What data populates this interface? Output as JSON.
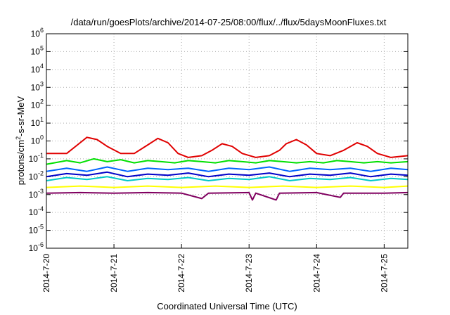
{
  "chart_data": {
    "type": "line",
    "title": "/data/run/goesPlots/archive/2014-07-25/08:00/flux/../flux/5daysMoonFluxes.txt",
    "xlabel": "Coordinated Universal Time (UTC)",
    "ylabel": {
      "prefix": "protons/cm",
      "exp": "2",
      "suffix": "-s-sr-MeV"
    },
    "yscale": "log",
    "ylim": [
      1e-06,
      1000000.0
    ],
    "xlim_days": [
      0,
      5.35
    ],
    "x_ticks": [
      "2014-7-20",
      "2014-7-21",
      "2014-7-22",
      "2014-7-23",
      "2014-7-24",
      "2014-7-25"
    ],
    "y_ticks": [
      {
        "base": "10",
        "exp": "-6"
      },
      {
        "base": "10",
        "exp": "-5"
      },
      {
        "base": "10",
        "exp": "-4"
      },
      {
        "base": "10",
        "exp": "-3"
      },
      {
        "base": "10",
        "exp": "-2"
      },
      {
        "base": "10",
        "exp": "-1"
      },
      {
        "base": "10",
        "exp": "0"
      },
      {
        "base": "10",
        "exp": "1"
      },
      {
        "base": "10",
        "exp": "2"
      },
      {
        "base": "10",
        "exp": "3"
      },
      {
        "base": "10",
        "exp": "4"
      },
      {
        "base": "10",
        "exp": "5"
      },
      {
        "base": "10",
        "exp": "6"
      }
    ],
    "grid": true,
    "legend": "none",
    "series_colors": [
      "#e00000",
      "#00e000",
      "#00c8c8",
      "#0064ff",
      "#0000c8",
      "#ffff00",
      "#800060"
    ],
    "series": [
      {
        "color": "#e00000",
        "points": [
          [
            0,
            0.2
          ],
          [
            0.3,
            0.2
          ],
          [
            0.5,
            0.8
          ],
          [
            0.6,
            1.6
          ],
          [
            0.75,
            1.2
          ],
          [
            0.9,
            0.5
          ],
          [
            1.1,
            0.2
          ],
          [
            1.3,
            0.2
          ],
          [
            1.5,
            0.6
          ],
          [
            1.65,
            1.4
          ],
          [
            1.8,
            0.8
          ],
          [
            1.95,
            0.2
          ],
          [
            2.1,
            0.12
          ],
          [
            2.3,
            0.15
          ],
          [
            2.45,
            0.3
          ],
          [
            2.6,
            0.7
          ],
          [
            2.75,
            0.5
          ],
          [
            2.9,
            0.2
          ],
          [
            3.1,
            0.12
          ],
          [
            3.3,
            0.15
          ],
          [
            3.45,
            0.3
          ],
          [
            3.55,
            0.7
          ],
          [
            3.7,
            1.2
          ],
          [
            3.85,
            0.6
          ],
          [
            4.0,
            0.2
          ],
          [
            4.2,
            0.15
          ],
          [
            4.4,
            0.3
          ],
          [
            4.6,
            0.8
          ],
          [
            4.75,
            0.5
          ],
          [
            4.9,
            0.2
          ],
          [
            5.1,
            0.12
          ],
          [
            5.35,
            0.15
          ]
        ]
      },
      {
        "color": "#00e000",
        "points": [
          [
            0,
            0.05
          ],
          [
            0.3,
            0.08
          ],
          [
            0.5,
            0.06
          ],
          [
            0.7,
            0.1
          ],
          [
            0.9,
            0.07
          ],
          [
            1.1,
            0.09
          ],
          [
            1.3,
            0.06
          ],
          [
            1.5,
            0.08
          ],
          [
            1.7,
            0.07
          ],
          [
            1.9,
            0.06
          ],
          [
            2.1,
            0.08
          ],
          [
            2.3,
            0.07
          ],
          [
            2.5,
            0.06
          ],
          [
            2.7,
            0.08
          ],
          [
            2.9,
            0.07
          ],
          [
            3.1,
            0.06
          ],
          [
            3.3,
            0.08
          ],
          [
            3.5,
            0.07
          ],
          [
            3.7,
            0.06
          ],
          [
            3.9,
            0.07
          ],
          [
            4.1,
            0.06
          ],
          [
            4.3,
            0.08
          ],
          [
            4.5,
            0.07
          ],
          [
            4.7,
            0.06
          ],
          [
            4.9,
            0.07
          ],
          [
            5.1,
            0.06
          ],
          [
            5.35,
            0.07
          ]
        ]
      },
      {
        "color": "#00c8c8",
        "points": [
          [
            0,
            0.006
          ],
          [
            0.3,
            0.009
          ],
          [
            0.6,
            0.007
          ],
          [
            0.9,
            0.01
          ],
          [
            1.2,
            0.006
          ],
          [
            1.5,
            0.008
          ],
          [
            1.8,
            0.007
          ],
          [
            2.1,
            0.009
          ],
          [
            2.4,
            0.006
          ],
          [
            2.7,
            0.008
          ],
          [
            3.0,
            0.007
          ],
          [
            3.3,
            0.01
          ],
          [
            3.6,
            0.006
          ],
          [
            3.9,
            0.008
          ],
          [
            4.2,
            0.007
          ],
          [
            4.5,
            0.009
          ],
          [
            4.8,
            0.006
          ],
          [
            5.1,
            0.008
          ],
          [
            5.35,
            0.007
          ]
        ]
      },
      {
        "color": "#0064ff",
        "points": [
          [
            0,
            0.02
          ],
          [
            0.3,
            0.03
          ],
          [
            0.6,
            0.02
          ],
          [
            0.9,
            0.035
          ],
          [
            1.2,
            0.02
          ],
          [
            1.5,
            0.03
          ],
          [
            1.8,
            0.025
          ],
          [
            2.1,
            0.03
          ],
          [
            2.4,
            0.02
          ],
          [
            2.7,
            0.03
          ],
          [
            3.0,
            0.025
          ],
          [
            3.3,
            0.035
          ],
          [
            3.6,
            0.02
          ],
          [
            3.9,
            0.03
          ],
          [
            4.2,
            0.025
          ],
          [
            4.5,
            0.03
          ],
          [
            4.8,
            0.02
          ],
          [
            5.1,
            0.03
          ],
          [
            5.35,
            0.025
          ]
        ]
      },
      {
        "color": "#0000c8",
        "points": [
          [
            0,
            0.01
          ],
          [
            0.3,
            0.015
          ],
          [
            0.6,
            0.012
          ],
          [
            0.9,
            0.018
          ],
          [
            1.2,
            0.01
          ],
          [
            1.5,
            0.014
          ],
          [
            1.8,
            0.012
          ],
          [
            2.1,
            0.016
          ],
          [
            2.4,
            0.01
          ],
          [
            2.7,
            0.014
          ],
          [
            3.0,
            0.012
          ],
          [
            3.3,
            0.016
          ],
          [
            3.6,
            0.01
          ],
          [
            3.9,
            0.014
          ],
          [
            4.2,
            0.012
          ],
          [
            4.5,
            0.016
          ],
          [
            4.8,
            0.01
          ],
          [
            5.1,
            0.014
          ],
          [
            5.35,
            0.012
          ]
        ]
      },
      {
        "color": "#ffff00",
        "points": [
          [
            0,
            0.0025
          ],
          [
            0.5,
            0.003
          ],
          [
            1.0,
            0.0025
          ],
          [
            1.5,
            0.003
          ],
          [
            2.0,
            0.0025
          ],
          [
            2.5,
            0.003
          ],
          [
            3.0,
            0.0025
          ],
          [
            3.5,
            0.003
          ],
          [
            4.0,
            0.0025
          ],
          [
            4.5,
            0.003
          ],
          [
            5.0,
            0.0025
          ],
          [
            5.35,
            0.003
          ]
        ]
      },
      {
        "color": "#800060",
        "points": [
          [
            0,
            0.0012
          ],
          [
            0.5,
            0.0013
          ],
          [
            1.0,
            0.0012
          ],
          [
            1.5,
            0.0013
          ],
          [
            2.0,
            0.0012
          ],
          [
            2.3,
            0.0006
          ],
          [
            2.4,
            0.0012
          ],
          [
            3.0,
            0.0013
          ],
          [
            3.05,
            0.0005
          ],
          [
            3.1,
            0.0012
          ],
          [
            3.4,
            0.0005
          ],
          [
            3.45,
            0.0012
          ],
          [
            4.0,
            0.0013
          ],
          [
            4.35,
            0.0007
          ],
          [
            4.4,
            0.0012
          ],
          [
            5.0,
            0.0012
          ],
          [
            5.35,
            0.0013
          ]
        ]
      }
    ]
  }
}
